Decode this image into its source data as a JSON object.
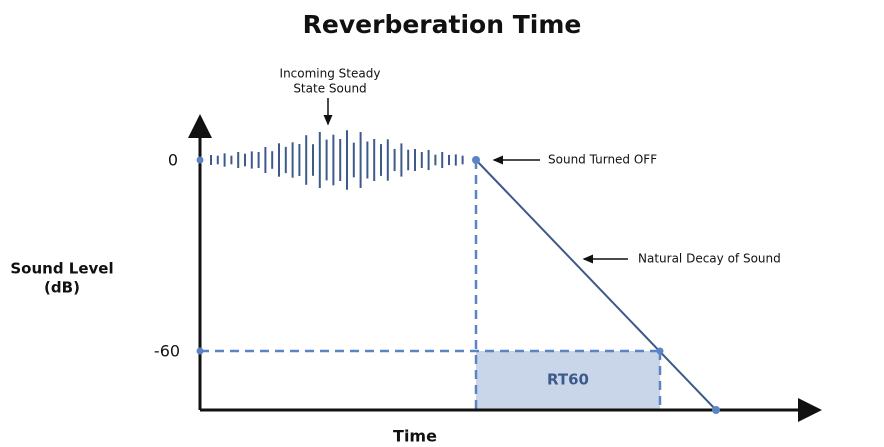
{
  "title": "Reverberation Time",
  "annotations": {
    "incoming": [
      "Incoming Steady",
      "State Sound"
    ],
    "turned_off": "Sound Turned OFF",
    "decay": "Natural Decay of Sound",
    "rt60": "RT60"
  },
  "y_axis": {
    "label": [
      "Sound Level",
      "(dB)"
    ],
    "levels": [
      "0",
      "-60"
    ]
  },
  "x_axis": {
    "label": "Time"
  }
}
